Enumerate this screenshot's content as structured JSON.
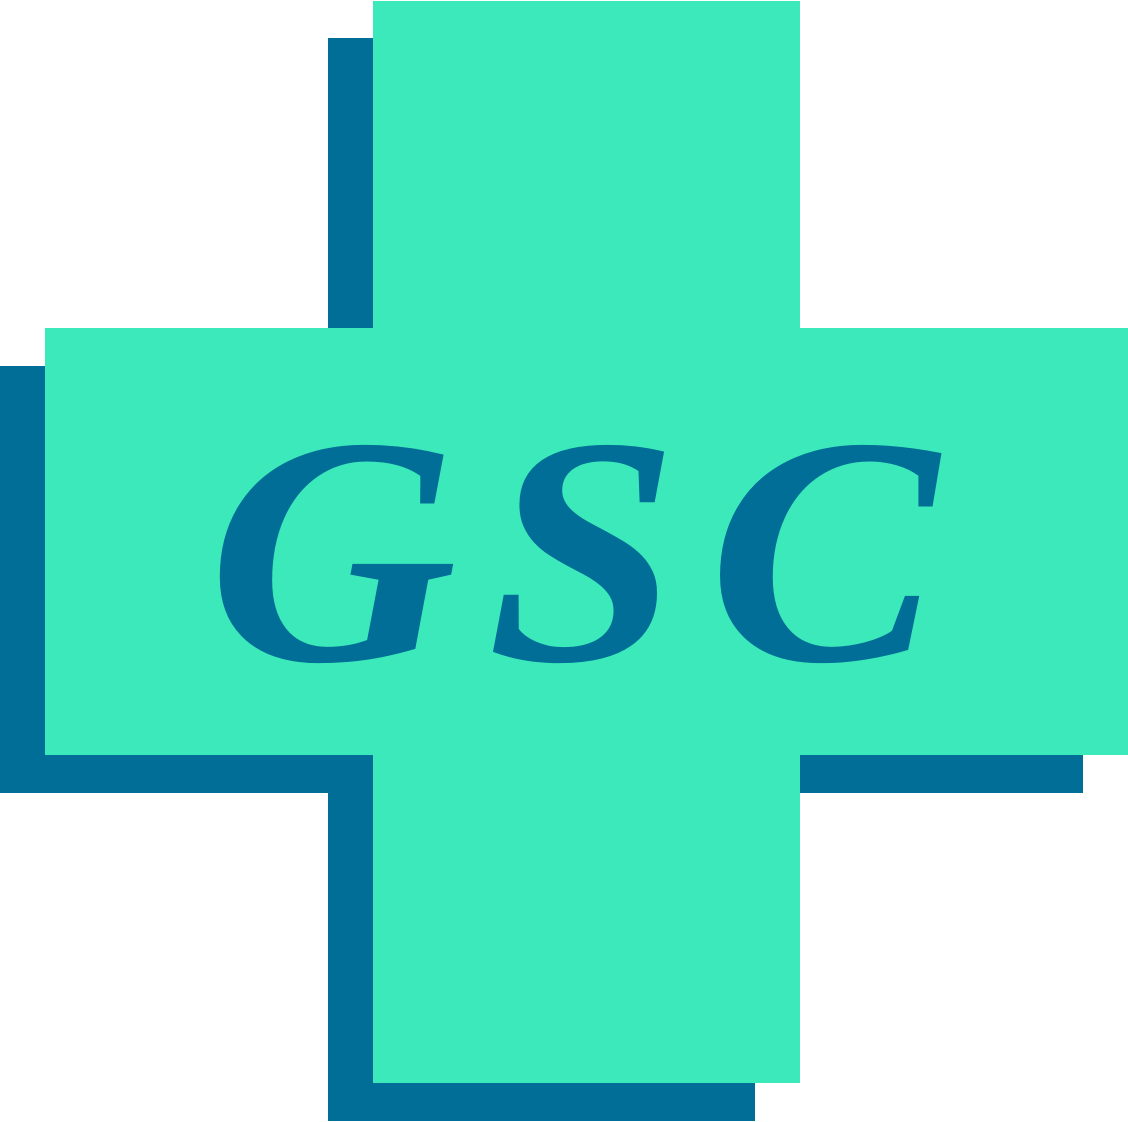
{
  "logo": {
    "text": "GSC",
    "colors": {
      "cross_fill": "#3BE9BB",
      "shadow_fill": "#006E96",
      "text_fill": "#006E96",
      "background": "#FFFFFF"
    }
  }
}
